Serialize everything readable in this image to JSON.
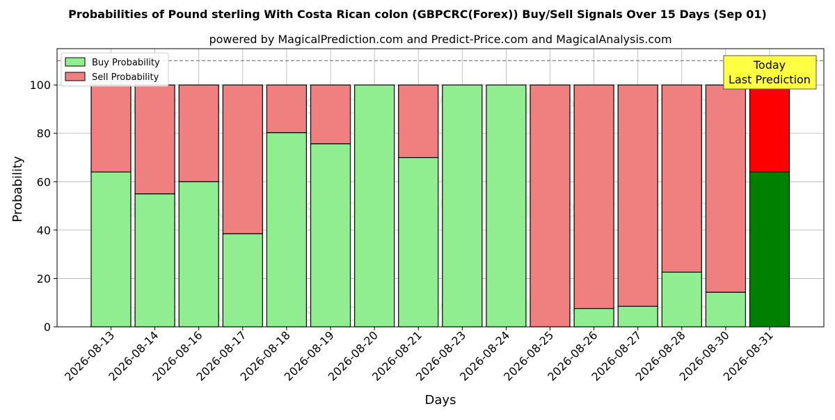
{
  "chart_data": {
    "type": "bar",
    "stacked": true,
    "title": "Probabilities of Pound sterling With Costa Rican colon (GBPCRC(Forex)) Buy/Sell Signals Over 15 Days (Sep 01)",
    "subtitle": "powered by MagicalPrediction.com and Predict-Price.com and MagicalAnalysis.com",
    "xlabel": "Days",
    "ylabel": "Probability",
    "ylim": [
      0,
      115
    ],
    "yticks": [
      0,
      20,
      40,
      60,
      80,
      100
    ],
    "grid": true,
    "legend_position": "top-left",
    "reference_line": 110,
    "categories": [
      "2026-08-13",
      "2026-08-14",
      "2026-08-16",
      "2026-08-17",
      "2026-08-18",
      "2026-08-19",
      "2026-08-20",
      "2026-08-21",
      "2026-08-23",
      "2026-08-24",
      "2026-08-25",
      "2026-08-26",
      "2026-08-27",
      "2026-08-28",
      "2026-08-30",
      "2026-08-31"
    ],
    "series": [
      {
        "name": "Buy Probability",
        "values": [
          64,
          55,
          60,
          38.5,
          80.3,
          75.7,
          100,
          70,
          100,
          100,
          0,
          7.6,
          8.5,
          22.6,
          14.3,
          64
        ],
        "color": "#90ee90",
        "highlight_color": "#008000"
      },
      {
        "name": "Sell Probability",
        "values": [
          36,
          45,
          40,
          61.5,
          19.7,
          24.3,
          0,
          30,
          0,
          0,
          100,
          92.4,
          91.5,
          77.4,
          85.7,
          36
        ],
        "color": "#f08080",
        "highlight_color": "#ff0000"
      }
    ],
    "highlight_index": 15,
    "annotation": {
      "line1": "Today",
      "line2": "Last Prediction",
      "bg": "#ffff44"
    },
    "watermarks": [
      "MagicalAnalysis.com",
      "MagicalPrediction.com"
    ]
  }
}
